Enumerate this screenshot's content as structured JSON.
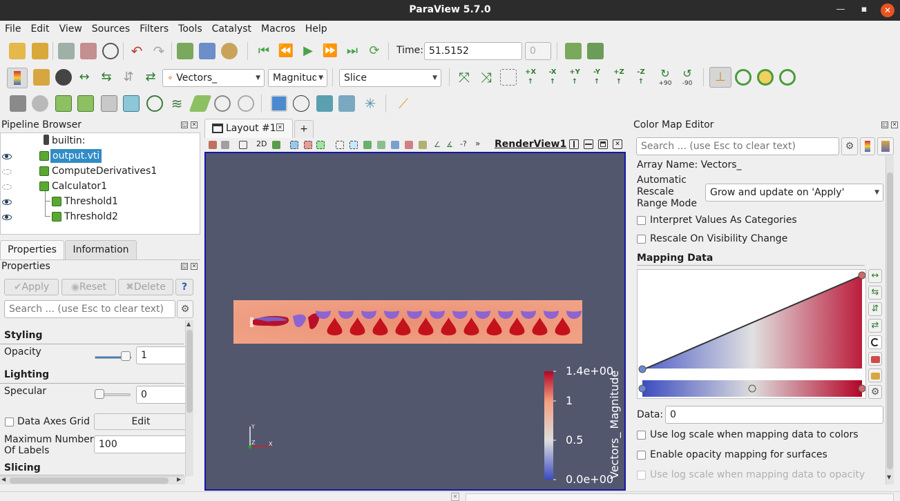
{
  "window": {
    "title": "ParaView 5.7.0",
    "minimize": "—",
    "maximize": "▪",
    "close": "✕"
  },
  "menu": [
    "File",
    "Edit",
    "View",
    "Sources",
    "Filters",
    "Tools",
    "Catalyst",
    "Macros",
    "Help"
  ],
  "toolbar1": {
    "time_label": "Time:",
    "time_value": "51.5152",
    "timestep_value": "0"
  },
  "toolbar2": {
    "color_by": "Vectors_",
    "component": "Magnitude",
    "representation": "Slice",
    "rot_plus": "+90",
    "rot_minus": "-90"
  },
  "pipeline": {
    "title": "Pipeline Browser",
    "items": [
      {
        "label": "builtin:"
      },
      {
        "label": "output.vti"
      },
      {
        "label": "ComputeDerivatives1"
      },
      {
        "label": "Calculator1"
      },
      {
        "label": "Threshold1"
      },
      {
        "label": "Threshold2"
      }
    ]
  },
  "properties": {
    "tabs": [
      "Properties",
      "Information"
    ],
    "title": "Properties",
    "apply": "Apply",
    "reset": "Reset",
    "delete": "Delete",
    "help": "?",
    "search_placeholder": "Search ... (use Esc to clear text)",
    "styling": "Styling",
    "opacity_label": "Opacity",
    "opacity_value": "1",
    "opacity_level": 1.0,
    "lighting": "Lighting",
    "specular_label": "Specular",
    "specular_value": "0",
    "specular_level": 0.0,
    "data_axes_grid": "Data Axes Grid",
    "edit": "Edit",
    "max_labels_label_1": "Maximum Number",
    "max_labels_label_2": "Of Labels",
    "max_labels_value": "100",
    "slicing": "Slicing"
  },
  "layout": {
    "tab": "Layout #1",
    "add": "+",
    "view_name": "RenderView1",
    "mode_2d": "2D"
  },
  "render": {
    "bg_color": "#52576e",
    "legend": {
      "title": "Vectors_ Magnitude",
      "ticks": [
        "1.4e+00",
        "1",
        "0.5",
        "0.0e+00"
      ]
    },
    "axes": {
      "x": "X",
      "y": "Y",
      "z": "Z"
    }
  },
  "colormap": {
    "title": "Color Map Editor",
    "search_placeholder": "Search ... (use Esc to clear text)",
    "array_name": "Array Name: Vectors_",
    "rescale_label_1": "Automatic",
    "rescale_label_2": "Rescale",
    "rescale_label_3": "Range Mode",
    "rescale_value": "Grow and update on 'Apply'",
    "interpret_categories": "Interpret Values As Categories",
    "rescale_visibility": "Rescale On Visibility Change",
    "mapping_data": "Mapping Data",
    "data_label": "Data:",
    "data_value": "0",
    "log_scale": "Use log scale when mapping data to colors",
    "opacity_mapping": "Enable opacity mapping for surfaces",
    "log_opacity": "Use log scale when mapping data to opacity"
  },
  "colors": {
    "accent_blue": "#3465a4",
    "cool": "#3b4cc0",
    "warm": "#b40426",
    "selection": "#308cc6"
  }
}
